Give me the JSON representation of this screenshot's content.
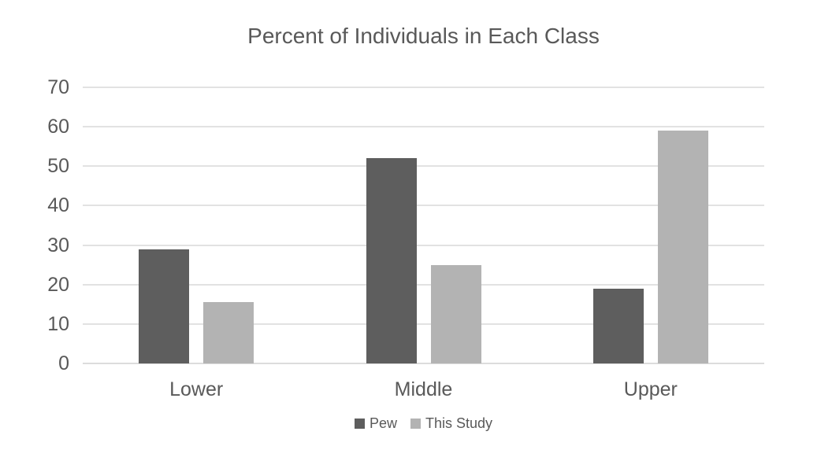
{
  "chart_data": {
    "type": "bar",
    "title": "Percent of Individuals in Each Class",
    "categories": [
      "Lower",
      "Middle",
      "Upper"
    ],
    "series": [
      {
        "name": "Pew",
        "color": "#5e5e5e",
        "values": [
          29,
          52,
          19
        ]
      },
      {
        "name": "This Study",
        "color": "#b3b3b3",
        "values": [
          15.5,
          25,
          59
        ]
      }
    ],
    "xlabel": "",
    "ylabel": "",
    "ylim": [
      0,
      70
    ],
    "yticks": [
      0,
      10,
      20,
      30,
      40,
      50,
      60,
      70
    ],
    "grid": true,
    "legend_position": "bottom"
  },
  "colors": {
    "text": "#595959",
    "gridline": "#e2e2e2",
    "background": "#ffffff"
  }
}
